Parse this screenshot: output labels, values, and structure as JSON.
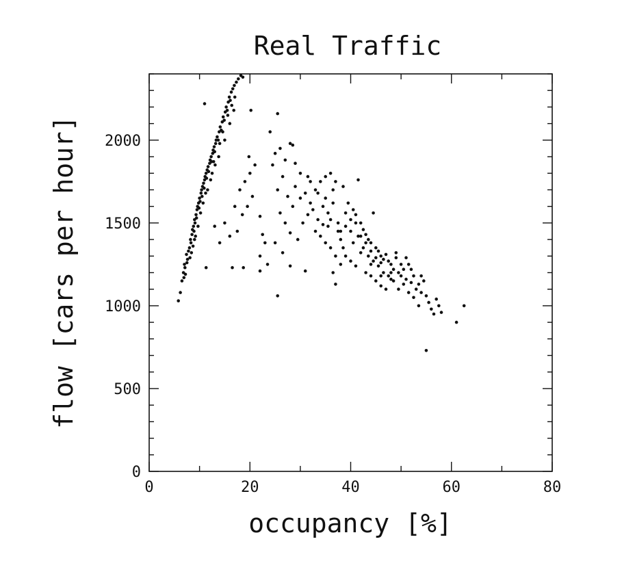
{
  "chart_data": {
    "type": "scatter",
    "title": "Real Traffic",
    "xlabel": "occupancy [%]",
    "ylabel": "flow [cars per hour]",
    "xlim": [
      0,
      80
    ],
    "ylim": [
      0,
      2400
    ],
    "x_ticks": [
      0,
      20,
      40,
      60,
      80
    ],
    "y_ticks": [
      0,
      500,
      1000,
      1500,
      2000
    ],
    "x_tick_labels": [
      "0",
      "20",
      "40",
      "60",
      "80"
    ],
    "y_tick_labels": [
      "0",
      "500",
      "1000",
      "1500",
      "2000"
    ],
    "grid": false,
    "legend": "none",
    "point_color": "#111111",
    "series": [
      {
        "points": [
          [
            5.8,
            1030
          ],
          [
            6.2,
            1080
          ],
          [
            6.5,
            1150
          ],
          [
            6.8,
            1200
          ],
          [
            7.0,
            1250
          ],
          [
            7.2,
            1190
          ],
          [
            7.4,
            1310
          ],
          [
            7.6,
            1280
          ],
          [
            7.8,
            1330
          ],
          [
            8.0,
            1350
          ],
          [
            8.2,
            1400
          ],
          [
            8.3,
            1380
          ],
          [
            8.5,
            1430
          ],
          [
            8.6,
            1460
          ],
          [
            8.8,
            1480
          ],
          [
            8.9,
            1450
          ],
          [
            9.0,
            1520
          ],
          [
            9.1,
            1500
          ],
          [
            9.3,
            1550
          ],
          [
            9.4,
            1530
          ],
          [
            9.5,
            1580
          ],
          [
            9.6,
            1600
          ],
          [
            9.8,
            1620
          ],
          [
            9.9,
            1590
          ],
          [
            10.0,
            1650
          ],
          [
            10.1,
            1630
          ],
          [
            10.3,
            1680
          ],
          [
            10.4,
            1700
          ],
          [
            10.5,
            1660
          ],
          [
            10.6,
            1720
          ],
          [
            10.8,
            1740
          ],
          [
            10.9,
            1710
          ],
          [
            11.0,
            1760
          ],
          [
            11.1,
            1780
          ],
          [
            11.3,
            1800
          ],
          [
            11.4,
            1770
          ],
          [
            11.5,
            1820
          ],
          [
            11.7,
            1840
          ],
          [
            11.8,
            1810
          ],
          [
            12.0,
            1860
          ],
          [
            12.1,
            1880
          ],
          [
            12.3,
            1900
          ],
          [
            12.4,
            1870
          ],
          [
            12.6,
            1920
          ],
          [
            12.7,
            1940
          ],
          [
            12.9,
            1960
          ],
          [
            13.0,
            1930
          ],
          [
            13.2,
            1980
          ],
          [
            13.3,
            2000
          ],
          [
            13.5,
            2020
          ],
          [
            13.7,
            2000
          ],
          [
            13.9,
            2050
          ],
          [
            14.1,
            2080
          ],
          [
            14.3,
            2060
          ],
          [
            14.5,
            2110
          ],
          [
            14.7,
            2140
          ],
          [
            14.9,
            2120
          ],
          [
            15.1,
            2170
          ],
          [
            15.3,
            2200
          ],
          [
            15.5,
            2180
          ],
          [
            15.7,
            2230
          ],
          [
            15.9,
            2260
          ],
          [
            16.1,
            2240
          ],
          [
            16.3,
            2290
          ],
          [
            16.6,
            2310
          ],
          [
            16.9,
            2330
          ],
          [
            17.3,
            2350
          ],
          [
            17.7,
            2370
          ],
          [
            18.2,
            2390
          ],
          [
            18.6,
            2380
          ],
          [
            9.2,
            1420
          ],
          [
            8.7,
            1360
          ],
          [
            10.2,
            1560
          ],
          [
            11.6,
            1700
          ],
          [
            12.5,
            1800
          ],
          [
            13.8,
            1900
          ],
          [
            15.0,
            2000
          ],
          [
            16.0,
            2100
          ],
          [
            16.8,
            2180
          ],
          [
            9.7,
            1480
          ],
          [
            8.1,
            1290
          ],
          [
            7.1,
            1230
          ],
          [
            6.9,
            1170
          ],
          [
            7.5,
            1260
          ],
          [
            10.7,
            1620
          ],
          [
            11.2,
            1680
          ],
          [
            12.2,
            1760
          ],
          [
            14.0,
            1980
          ],
          [
            15.6,
            2150
          ],
          [
            16.4,
            2210
          ],
          [
            17.0,
            2260
          ],
          [
            8.4,
            1320
          ],
          [
            9.0,
            1400
          ],
          [
            13.1,
            1850
          ],
          [
            14.6,
            2050
          ],
          [
            12.8,
            1870
          ],
          [
            11.3,
            1230
          ],
          [
            13.0,
            1480
          ],
          [
            14.0,
            1380
          ],
          [
            15.0,
            1500
          ],
          [
            16.0,
            1420
          ],
          [
            17.0,
            1600
          ],
          [
            18.0,
            1700
          ],
          [
            19.0,
            1750
          ],
          [
            20.0,
            1800
          ],
          [
            21.0,
            1850
          ],
          [
            19.5,
            1600
          ],
          [
            18.5,
            1550
          ],
          [
            20.5,
            1660
          ],
          [
            22.0,
            1540
          ],
          [
            22.5,
            1430
          ],
          [
            23.0,
            1380
          ],
          [
            22.0,
            1300
          ],
          [
            23.5,
            1250
          ],
          [
            22.0,
            1210
          ],
          [
            16.5,
            1230
          ],
          [
            17.5,
            1450
          ],
          [
            18.7,
            1230
          ],
          [
            19.8,
            1900
          ],
          [
            20.2,
            2180
          ],
          [
            11.0,
            2220
          ],
          [
            25.5,
            2160
          ],
          [
            24.0,
            2050
          ],
          [
            26.0,
            1950
          ],
          [
            28.0,
            1980
          ],
          [
            28.5,
            1970
          ],
          [
            25.0,
            1920
          ],
          [
            27.0,
            1880
          ],
          [
            29.0,
            1860
          ],
          [
            30.0,
            1800
          ],
          [
            24.5,
            1850
          ],
          [
            26.5,
            1780
          ],
          [
            25.5,
            1700
          ],
          [
            27.5,
            1660
          ],
          [
            28.5,
            1600
          ],
          [
            26.0,
            1560
          ],
          [
            27.0,
            1500
          ],
          [
            28.0,
            1440
          ],
          [
            25.0,
            1380
          ],
          [
            26.5,
            1320
          ],
          [
            25.5,
            1060
          ],
          [
            28.0,
            1240
          ],
          [
            29.5,
            1400
          ],
          [
            31.0,
            1210
          ],
          [
            30.5,
            1500
          ],
          [
            31.5,
            1550
          ],
          [
            32.0,
            1620
          ],
          [
            33.0,
            1700
          ],
          [
            34.0,
            1750
          ],
          [
            35.0,
            1780
          ],
          [
            36.0,
            1800
          ],
          [
            37.0,
            1750
          ],
          [
            31.0,
            1680
          ],
          [
            32.5,
            1580
          ],
          [
            33.5,
            1520
          ],
          [
            34.5,
            1490
          ],
          [
            35.5,
            1560
          ],
          [
            36.5,
            1620
          ],
          [
            37.5,
            1500
          ],
          [
            38.0,
            1450
          ],
          [
            33.0,
            1450
          ],
          [
            34.0,
            1420
          ],
          [
            35.0,
            1380
          ],
          [
            36.0,
            1350
          ],
          [
            37.0,
            1300
          ],
          [
            38.0,
            1400
          ],
          [
            39.0,
            1480
          ],
          [
            40.0,
            1520
          ],
          [
            39.5,
            1620
          ],
          [
            40.5,
            1580
          ],
          [
            41.0,
            1550
          ],
          [
            41.5,
            1760
          ],
          [
            42.0,
            1500
          ],
          [
            42.5,
            1460
          ],
          [
            43.0,
            1430
          ],
          [
            43.5,
            1400
          ],
          [
            44.0,
            1380
          ],
          [
            44.5,
            1560
          ],
          [
            45.0,
            1350
          ],
          [
            45.5,
            1330
          ],
          [
            46.0,
            1300
          ],
          [
            46.5,
            1280
          ],
          [
            47.0,
            1310
          ],
          [
            47.5,
            1270
          ],
          [
            48.0,
            1250
          ],
          [
            48.5,
            1220
          ],
          [
            49.0,
            1290
          ],
          [
            49.5,
            1200
          ],
          [
            50.0,
            1180
          ],
          [
            50.5,
            1220
          ],
          [
            51.0,
            1160
          ],
          [
            51.5,
            1250
          ],
          [
            52.0,
            1140
          ],
          [
            52.5,
            1180
          ],
          [
            53.0,
            1100
          ],
          [
            53.5,
            1130
          ],
          [
            54.0,
            1080
          ],
          [
            54.5,
            1150
          ],
          [
            55.0,
            1060
          ],
          [
            55.5,
            1020
          ],
          [
            56.0,
            980
          ],
          [
            56.5,
            950
          ],
          [
            57.0,
            1040
          ],
          [
            57.5,
            1000
          ],
          [
            58.0,
            960
          ],
          [
            55.0,
            730
          ],
          [
            61.0,
            900
          ],
          [
            62.5,
            1000
          ],
          [
            38.5,
            1350
          ],
          [
            39.0,
            1300
          ],
          [
            40.0,
            1270
          ],
          [
            41.0,
            1240
          ],
          [
            42.0,
            1320
          ],
          [
            43.0,
            1200
          ],
          [
            44.0,
            1180
          ],
          [
            45.0,
            1150
          ],
          [
            46.0,
            1120
          ],
          [
            47.0,
            1100
          ],
          [
            48.0,
            1160
          ],
          [
            37.0,
            1130
          ],
          [
            36.5,
            1200
          ],
          [
            38.0,
            1250
          ],
          [
            40.5,
            1380
          ],
          [
            41.5,
            1420
          ],
          [
            42.5,
            1350
          ],
          [
            43.5,
            1300
          ],
          [
            44.5,
            1270
          ],
          [
            45.5,
            1240
          ],
          [
            46.5,
            1200
          ],
          [
            47.5,
            1180
          ],
          [
            48.5,
            1150
          ],
          [
            49.5,
            1100
          ],
          [
            50.5,
            1130
          ],
          [
            51.5,
            1080
          ],
          [
            52.5,
            1050
          ],
          [
            53.5,
            1000
          ],
          [
            35.5,
            1480
          ],
          [
            34.5,
            1600
          ],
          [
            36.0,
            1520
          ],
          [
            37.5,
            1450
          ],
          [
            39.0,
            1560
          ],
          [
            40.0,
            1450
          ],
          [
            41.0,
            1500
          ],
          [
            42.0,
            1420
          ],
          [
            43.0,
            1380
          ],
          [
            44.0,
            1330
          ],
          [
            45.0,
            1290
          ],
          [
            46.0,
            1260
          ],
          [
            32.0,
            1750
          ],
          [
            30.0,
            1650
          ],
          [
            29.0,
            1720
          ],
          [
            31.5,
            1780
          ],
          [
            33.5,
            1680
          ],
          [
            38.5,
            1720
          ],
          [
            35.0,
            1650
          ],
          [
            36.5,
            1700
          ],
          [
            44.0,
            1250
          ],
          [
            46.0,
            1180
          ],
          [
            48.0,
            1200
          ],
          [
            50.0,
            1250
          ],
          [
            52.0,
            1220
          ],
          [
            54.0,
            1180
          ],
          [
            49.0,
            1320
          ],
          [
            51.0,
            1290
          ]
        ]
      }
    ]
  }
}
